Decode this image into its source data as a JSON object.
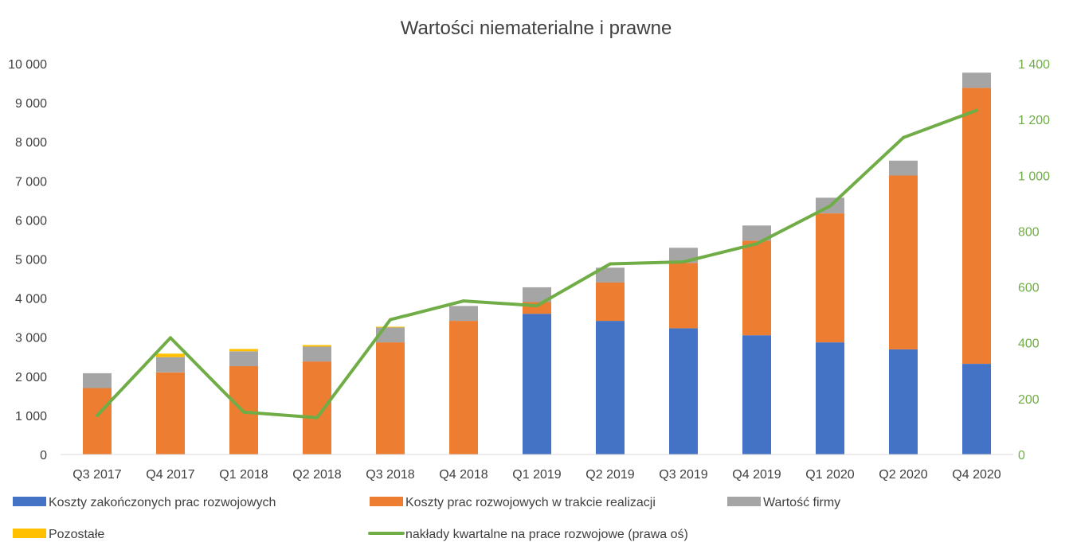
{
  "chart_data": {
    "type": "bar",
    "title": "Wartości niematerialne i prawne",
    "categories": [
      "Q3 2017",
      "Q4 2017",
      "Q1 2018",
      "Q2 2018",
      "Q3 2018",
      "Q4 2018",
      "Q1 2019",
      "Q2 2019",
      "Q3 2019",
      "Q4 2019",
      "Q1 2020",
      "Q2 2020",
      "Q4 2020"
    ],
    "stacked": true,
    "ylim_left": [
      0,
      10000
    ],
    "yticks_left": [
      "0",
      "1 000",
      "2 000",
      "3 000",
      "4 000",
      "5 000",
      "6 000",
      "7 000",
      "8 000",
      "9 000",
      "10 000"
    ],
    "ylim_right": [
      0,
      1400
    ],
    "yticks_right": [
      "0",
      "200",
      "400",
      "600",
      "800",
      "1 000",
      "1 200",
      "1 400"
    ],
    "grid": false,
    "legend_position": "bottom",
    "series": [
      {
        "name": "Koszty zakończonych prac rozwojowych",
        "type": "bar",
        "axis": "left",
        "color": "#4472c4",
        "values": [
          0,
          0,
          0,
          0,
          0,
          0,
          3600,
          3420,
          3230,
          3050,
          2870,
          2690,
          2320
        ]
      },
      {
        "name": "Koszty prac rozwojowych w trakcie realizacji",
        "type": "bar",
        "axis": "left",
        "color": "#ed7d31",
        "values": [
          1700,
          2100,
          2260,
          2380,
          2870,
          3420,
          300,
          980,
          1670,
          2420,
          3300,
          4450,
          7060
        ]
      },
      {
        "name": "Wartość firmy",
        "type": "bar",
        "axis": "left",
        "color": "#a5a5a5",
        "values": [
          380,
          390,
          380,
          380,
          380,
          380,
          380,
          380,
          390,
          390,
          400,
          380,
          390
        ]
      },
      {
        "name": "Pozostałe",
        "type": "bar",
        "axis": "left",
        "color": "#ffc000",
        "values": [
          0,
          90,
          60,
          40,
          20,
          0,
          0,
          0,
          0,
          0,
          0,
          0,
          0
        ]
      },
      {
        "name": "nakłady kwartalne na prace rozwojowe (prawa oś)",
        "type": "line",
        "axis": "right",
        "color": "#70ad47",
        "values": [
          140,
          418,
          152,
          132,
          483,
          550,
          533,
          683,
          690,
          755,
          890,
          1135,
          1233
        ]
      }
    ]
  }
}
